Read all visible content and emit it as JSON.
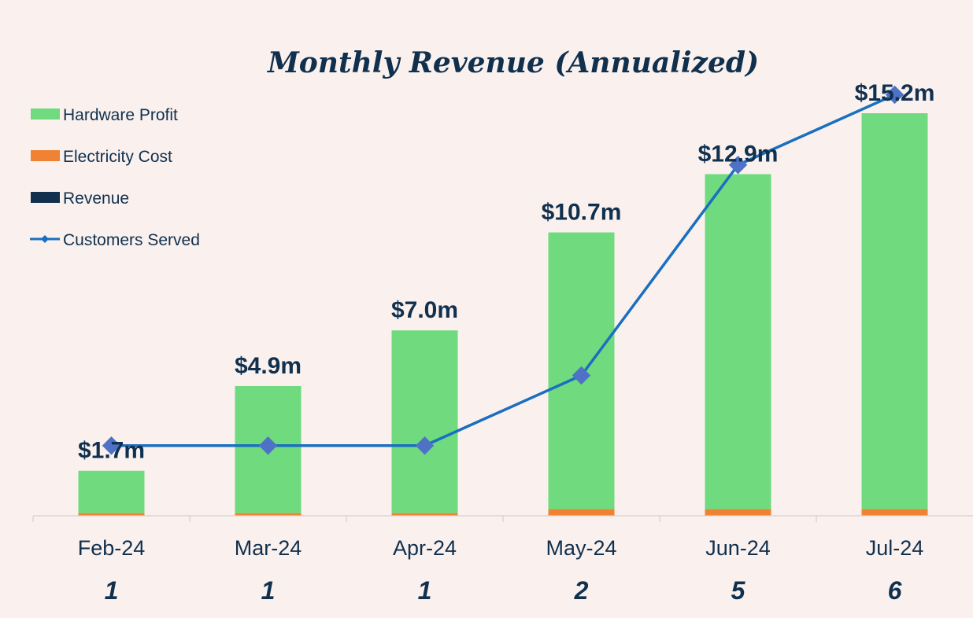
{
  "chart_data": {
    "type": "bar",
    "title": "Monthly Revenue (Annualized)",
    "categories": [
      "Feb-24",
      "Mar-24",
      "Apr-24",
      "May-24",
      "Jun-24",
      "Jul-24"
    ],
    "series": [
      {
        "name": "Hardware Profit",
        "kind": "stacked-bar",
        "color": "#6fdb7e",
        "values": [
          1.6,
          4.8,
          6.9,
          10.45,
          12.65,
          14.95
        ]
      },
      {
        "name": "Electricity Cost",
        "kind": "stacked-bar",
        "color": "#ef8233",
        "values": [
          0.1,
          0.1,
          0.1,
          0.25,
          0.25,
          0.25
        ]
      },
      {
        "name": "Revenue",
        "kind": "legend-only",
        "color": "#10304e",
        "values": [
          1.7,
          4.9,
          7.0,
          10.7,
          12.9,
          15.2
        ],
        "labels": [
          "$1.7m",
          "$4.9m",
          "$7.0m",
          "$10.7m",
          "$12.9m",
          "$15.2m"
        ]
      },
      {
        "name": "Customers Served",
        "kind": "line",
        "color": "#1a6fc0",
        "marker_color": "#4f72c7",
        "values": [
          1,
          1,
          1,
          2,
          5,
          6
        ],
        "labels": [
          "1",
          "1",
          "1",
          "2",
          "5",
          "6"
        ]
      }
    ],
    "ylim": [
      0,
      15.2
    ],
    "y2lim": [
      0,
      7.35
    ],
    "xlabel": "",
    "ylabel": "",
    "grid": false,
    "legend_position": "top-left"
  }
}
